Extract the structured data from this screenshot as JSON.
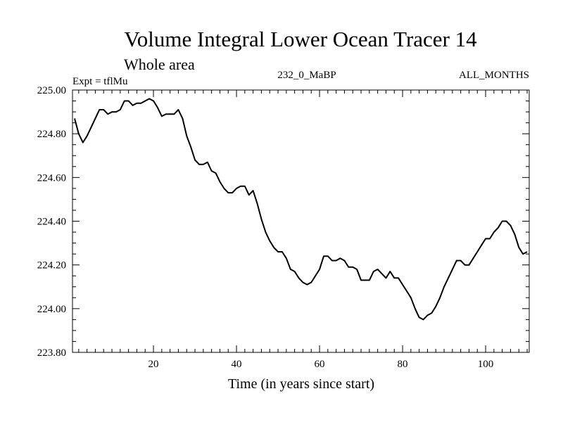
{
  "chart_data": {
    "type": "line",
    "title": "Volume Integral Lower Ocean Tracer 14",
    "subtitle": "Whole area",
    "expt_label": "Expt = tflMu",
    "center_label": "232_0_MaBP",
    "right_label": "ALL_MONTHS",
    "xlabel": "Time (in years since start)",
    "ylabel": "",
    "xlim": [
      0.5,
      110.5
    ],
    "ylim": [
      223.8,
      225.0
    ],
    "x_ticks": [
      20,
      40,
      60,
      80,
      100
    ],
    "x_tick_labels": [
      "20",
      "40",
      "60",
      "80",
      "100"
    ],
    "y_ticks": [
      223.8,
      224.0,
      224.2,
      224.4,
      224.6,
      224.8,
      225.0
    ],
    "y_tick_labels": [
      "223.80",
      "224.00",
      "224.20",
      "224.40",
      "224.60",
      "224.80",
      "225.00"
    ],
    "series": [
      {
        "name": "tflMu",
        "color": "#000000",
        "x": [
          1,
          2,
          3,
          4,
          5,
          6,
          7,
          8,
          9,
          10,
          11,
          12,
          13,
          14,
          15,
          16,
          17,
          18,
          19,
          20,
          21,
          22,
          23,
          24,
          25,
          26,
          27,
          28,
          29,
          30,
          31,
          32,
          33,
          34,
          35,
          36,
          37,
          38,
          39,
          40,
          41,
          42,
          43,
          44,
          45,
          46,
          47,
          48,
          49,
          50,
          51,
          52,
          53,
          54,
          55,
          56,
          57,
          58,
          59,
          60,
          61,
          62,
          63,
          64,
          65,
          66,
          67,
          68,
          69,
          70,
          71,
          72,
          73,
          74,
          75,
          76,
          77,
          78,
          79,
          80,
          81,
          82,
          83,
          84,
          85,
          86,
          87,
          88,
          89,
          90,
          91,
          92,
          93,
          94,
          95,
          96,
          97,
          98,
          99,
          100,
          101,
          102,
          103,
          104,
          105,
          106,
          107,
          108,
          109,
          110
        ],
        "values": [
          224.87,
          224.8,
          224.76,
          224.79,
          224.83,
          224.87,
          224.91,
          224.91,
          224.89,
          224.9,
          224.9,
          224.91,
          224.95,
          224.95,
          224.93,
          224.94,
          224.94,
          224.95,
          224.96,
          224.95,
          224.92,
          224.88,
          224.89,
          224.89,
          224.89,
          224.91,
          224.87,
          224.79,
          224.74,
          224.68,
          224.66,
          224.66,
          224.67,
          224.63,
          224.62,
          224.58,
          224.55,
          224.53,
          224.53,
          224.55,
          224.56,
          224.56,
          224.52,
          224.54,
          224.48,
          224.41,
          224.35,
          224.31,
          224.28,
          224.26,
          224.26,
          224.23,
          224.18,
          224.17,
          224.14,
          224.12,
          224.11,
          224.12,
          224.15,
          224.18,
          224.24,
          224.24,
          224.22,
          224.22,
          224.23,
          224.22,
          224.19,
          224.19,
          224.18,
          224.13,
          224.13,
          224.13,
          224.17,
          224.18,
          224.16,
          224.14,
          224.17,
          224.14,
          224.14,
          224.11,
          224.08,
          224.05,
          224.0,
          223.96,
          223.95,
          223.97,
          223.98,
          224.01,
          224.05,
          224.1,
          224.14,
          224.18,
          224.22,
          224.22,
          224.2,
          224.2,
          224.23,
          224.26,
          224.29,
          224.32,
          224.32,
          224.35,
          224.37,
          224.4,
          224.4,
          224.38,
          224.34,
          224.28,
          224.25,
          224.26
        ]
      }
    ]
  }
}
